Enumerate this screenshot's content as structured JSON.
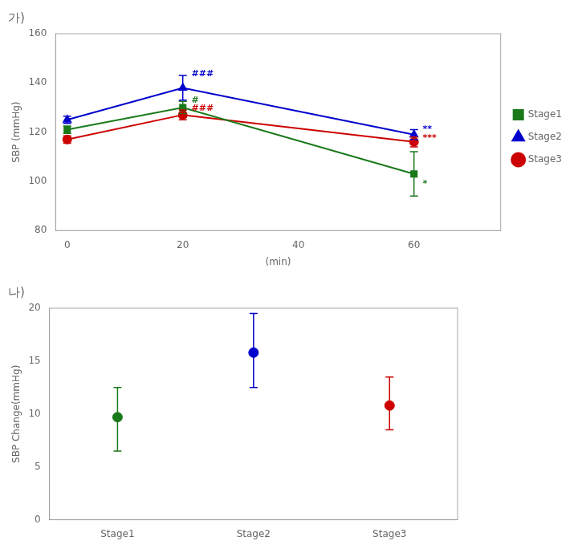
{
  "chart_data": [
    {
      "type": "line",
      "title": "가)",
      "x": [
        0,
        20,
        60
      ],
      "series": [
        {
          "name": "Stage1",
          "color": "#1a7a1a",
          "marker": "square",
          "line_style": "solid",
          "values": [
            121,
            130,
            103
          ],
          "yerr_lo": [
            1.5,
            2.5,
            9
          ],
          "yerr_hi": [
            1.5,
            2.5,
            9
          ]
        },
        {
          "name": "Stage2",
          "color": "#0000cc",
          "marker": "triangle",
          "line_style": "solid",
          "values": [
            125,
            138,
            119
          ],
          "yerr_lo": [
            1.5,
            5,
            2
          ],
          "yerr_hi": [
            1.5,
            5,
            2
          ]
        },
        {
          "name": "Stage3",
          "color": "#cc0000",
          "marker": "circle",
          "line_style": "solid",
          "values": [
            117,
            127,
            116
          ],
          "yerr_lo": [
            1.5,
            2,
            2
          ],
          "yerr_hi": [
            1.5,
            2,
            2
          ]
        }
      ],
      "xlabel": "(min)",
      "ylabel": "SBP (mmHg)",
      "xlim": [
        -2,
        75
      ],
      "xticks": [
        0,
        20,
        40,
        60
      ],
      "ylim": [
        80,
        160
      ],
      "yticks": [
        80,
        100,
        120,
        140,
        160
      ],
      "grid": false,
      "legend": "right",
      "annotations": [
        {
          "text": "###",
          "x": 21.5,
          "y": 143.5,
          "color": "#0000cc"
        },
        {
          "text": "#",
          "x": 21.5,
          "y": 133,
          "color": "#1a7a1a"
        },
        {
          "text": "###",
          "x": 21.5,
          "y": 129.5,
          "color": "#cc0000"
        },
        {
          "text": "**",
          "x": 61.5,
          "y": 121,
          "color": "#0000cc"
        },
        {
          "text": "***",
          "x": 61.5,
          "y": 117.5,
          "color": "#cc0000"
        },
        {
          "text": "*",
          "x": 61.5,
          "y": 99,
          "color": "#1a7a1a"
        }
      ]
    },
    {
      "type": "scatter",
      "title": "나)",
      "categories": [
        "Stage1",
        "Stage2",
        "Stage3"
      ],
      "values": [
        9.7,
        15.8,
        10.8
      ],
      "colors": [
        "#1a7a1a",
        "#0000cc",
        "#cc0000"
      ],
      "yerr_lo": [
        3.2,
        3.3,
        2.3
      ],
      "yerr_hi": [
        2.8,
        3.7,
        2.7
      ],
      "ylabel": "SBP Change(mmHg)",
      "ylim": [
        0,
        20
      ],
      "yticks": [
        0,
        5,
        10,
        15,
        20
      ],
      "grid": false
    }
  ]
}
